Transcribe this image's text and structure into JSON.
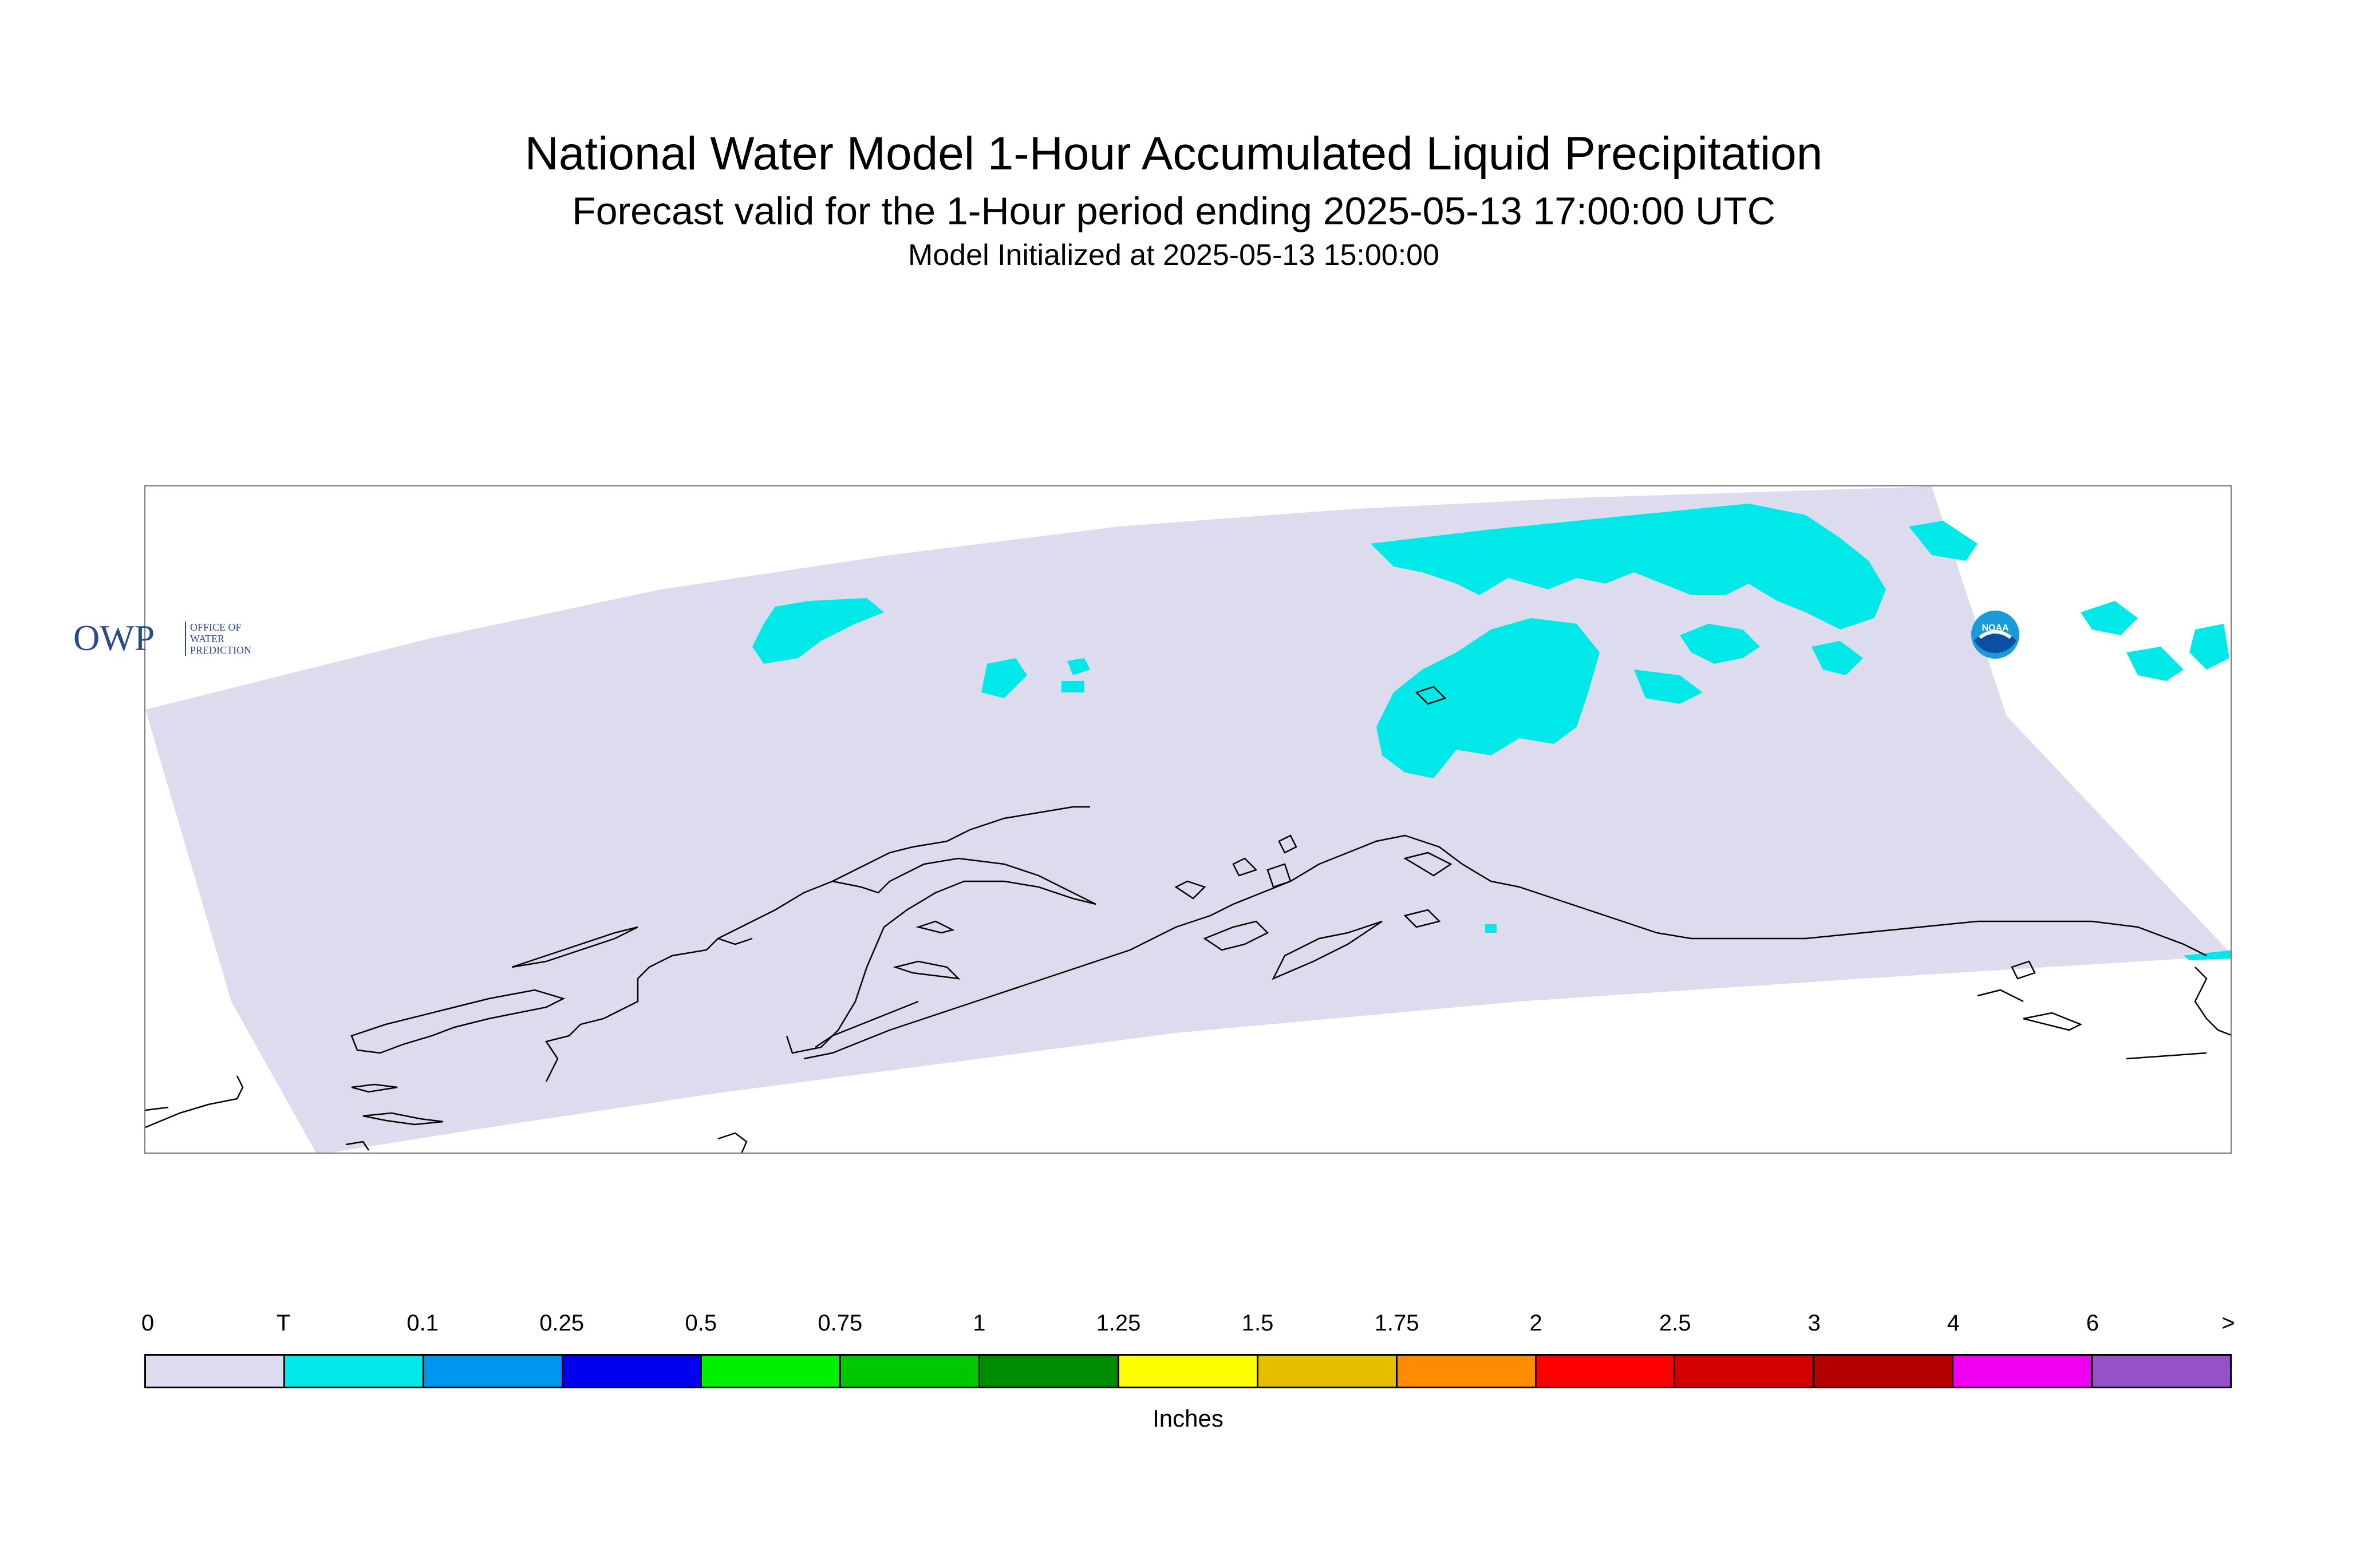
{
  "title": "National Water Model 1-Hour Accumulated Liquid Precipitation",
  "subtitle": "Forecast valid for the 1-Hour period ending 2025-05-13 17:00:00 UTC",
  "init_line": "Model Initialized at 2025-05-13 15:00:00",
  "map": {
    "region": "Alaska",
    "domain_fill_color": "#dcdcee",
    "precip_color": "#00e8e8",
    "coastline_color": "#000000"
  },
  "logos": {
    "owp_mark": "OWP",
    "owp_text_lines": [
      "OFFICE OF",
      "WATER",
      "PREDICTION"
    ],
    "noaa_text": "NOAA"
  },
  "legend": {
    "units": "Inches",
    "tick_labels": [
      "0",
      "T",
      "0.1",
      "0.25",
      "0.5",
      "0.75",
      "1",
      "1.25",
      "1.5",
      "1.75",
      "2",
      "2.5",
      "3",
      "4",
      "6",
      ">"
    ],
    "colors": [
      "#dcdcee",
      "#00e8e8",
      "#0096f0",
      "#0000f0",
      "#00f000",
      "#00c800",
      "#008c00",
      "#ffff00",
      "#e6be00",
      "#ff8c00",
      "#ff0000",
      "#d20000",
      "#b40000",
      "#f000f0",
      "#9650c8"
    ]
  }
}
